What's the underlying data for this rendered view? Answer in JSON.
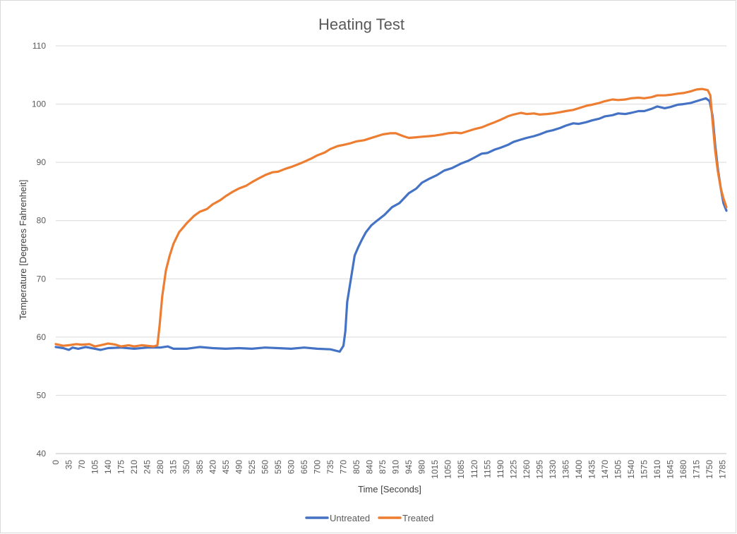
{
  "chart_data": {
    "type": "line",
    "title": "Heating Test",
    "xlabel": "Time [Seconds]",
    "ylabel": "Temperature [Degrees Fahrenheit]",
    "xlim": [
      0,
      1795
    ],
    "ylim": [
      40,
      110
    ],
    "y_ticks": [
      40,
      50,
      60,
      70,
      80,
      90,
      100,
      110
    ],
    "x_ticks": [
      0,
      35,
      70,
      105,
      140,
      175,
      210,
      245,
      280,
      315,
      350,
      385,
      420,
      455,
      490,
      525,
      560,
      595,
      630,
      665,
      700,
      735,
      770,
      805,
      840,
      875,
      910,
      945,
      980,
      1015,
      1050,
      1085,
      1120,
      1155,
      1190,
      1225,
      1260,
      1295,
      1330,
      1365,
      1400,
      1435,
      1470,
      1505,
      1540,
      1575,
      1610,
      1645,
      1680,
      1715,
      1750,
      1785
    ],
    "grid": "horizontal",
    "legend_position": "bottom",
    "series": [
      {
        "name": "Untreated",
        "color": "#4472c4",
        "points": [
          [
            0,
            58.3
          ],
          [
            20,
            58.1
          ],
          [
            35,
            57.8
          ],
          [
            45,
            58.2
          ],
          [
            60,
            58.0
          ],
          [
            80,
            58.3
          ],
          [
            105,
            58.0
          ],
          [
            120,
            57.8
          ],
          [
            140,
            58.1
          ],
          [
            175,
            58.2
          ],
          [
            210,
            58.0
          ],
          [
            245,
            58.2
          ],
          [
            280,
            58.2
          ],
          [
            300,
            58.4
          ],
          [
            315,
            58.0
          ],
          [
            350,
            58.0
          ],
          [
            385,
            58.3
          ],
          [
            420,
            58.1
          ],
          [
            455,
            58.0
          ],
          [
            490,
            58.1
          ],
          [
            525,
            58.0
          ],
          [
            560,
            58.2
          ],
          [
            595,
            58.1
          ],
          [
            630,
            58.0
          ],
          [
            665,
            58.2
          ],
          [
            700,
            58.0
          ],
          [
            735,
            57.9
          ],
          [
            760,
            57.5
          ],
          [
            770,
            58.5
          ],
          [
            775,
            61.0
          ],
          [
            780,
            66.0
          ],
          [
            790,
            70.0
          ],
          [
            800,
            74.0
          ],
          [
            810,
            75.5
          ],
          [
            820,
            76.8
          ],
          [
            830,
            78.0
          ],
          [
            845,
            79.2
          ],
          [
            860,
            80.0
          ],
          [
            880,
            81.0
          ],
          [
            900,
            82.3
          ],
          [
            920,
            83.0
          ],
          [
            945,
            84.7
          ],
          [
            965,
            85.5
          ],
          [
            980,
            86.5
          ],
          [
            1000,
            87.2
          ],
          [
            1020,
            87.8
          ],
          [
            1040,
            88.6
          ],
          [
            1060,
            89.0
          ],
          [
            1085,
            89.8
          ],
          [
            1105,
            90.3
          ],
          [
            1120,
            90.8
          ],
          [
            1140,
            91.5
          ],
          [
            1155,
            91.6
          ],
          [
            1175,
            92.2
          ],
          [
            1190,
            92.5
          ],
          [
            1210,
            93.0
          ],
          [
            1225,
            93.5
          ],
          [
            1245,
            93.9
          ],
          [
            1260,
            94.2
          ],
          [
            1280,
            94.5
          ],
          [
            1295,
            94.8
          ],
          [
            1315,
            95.3
          ],
          [
            1330,
            95.5
          ],
          [
            1350,
            95.9
          ],
          [
            1365,
            96.3
          ],
          [
            1385,
            96.7
          ],
          [
            1400,
            96.6
          ],
          [
            1420,
            96.9
          ],
          [
            1435,
            97.2
          ],
          [
            1455,
            97.5
          ],
          [
            1470,
            97.9
          ],
          [
            1490,
            98.1
          ],
          [
            1505,
            98.4
          ],
          [
            1525,
            98.3
          ],
          [
            1540,
            98.5
          ],
          [
            1560,
            98.8
          ],
          [
            1575,
            98.8
          ],
          [
            1595,
            99.2
          ],
          [
            1610,
            99.6
          ],
          [
            1630,
            99.3
          ],
          [
            1645,
            99.5
          ],
          [
            1665,
            99.9
          ],
          [
            1680,
            100.0
          ],
          [
            1700,
            100.2
          ],
          [
            1715,
            100.5
          ],
          [
            1730,
            100.8
          ],
          [
            1740,
            101.0
          ],
          [
            1750,
            100.5
          ],
          [
            1758,
            98.0
          ],
          [
            1765,
            93.0
          ],
          [
            1772,
            89.0
          ],
          [
            1780,
            85.5
          ],
          [
            1787,
            83.0
          ],
          [
            1795,
            81.7
          ]
        ]
      },
      {
        "name": "Treated",
        "color": "#ed7d31",
        "points": [
          [
            0,
            58.8
          ],
          [
            20,
            58.5
          ],
          [
            35,
            58.6
          ],
          [
            55,
            58.8
          ],
          [
            70,
            58.7
          ],
          [
            90,
            58.8
          ],
          [
            105,
            58.4
          ],
          [
            120,
            58.6
          ],
          [
            140,
            58.9
          ],
          [
            160,
            58.7
          ],
          [
            175,
            58.4
          ],
          [
            195,
            58.6
          ],
          [
            210,
            58.4
          ],
          [
            230,
            58.6
          ],
          [
            245,
            58.5
          ],
          [
            262,
            58.4
          ],
          [
            272,
            58.6
          ],
          [
            278,
            62.0
          ],
          [
            285,
            67.0
          ],
          [
            295,
            71.5
          ],
          [
            305,
            74.0
          ],
          [
            315,
            76.0
          ],
          [
            330,
            78.0
          ],
          [
            350,
            79.5
          ],
          [
            370,
            80.8
          ],
          [
            385,
            81.5
          ],
          [
            405,
            82.0
          ],
          [
            420,
            82.8
          ],
          [
            440,
            83.5
          ],
          [
            455,
            84.2
          ],
          [
            475,
            85.0
          ],
          [
            490,
            85.5
          ],
          [
            510,
            86.0
          ],
          [
            525,
            86.6
          ],
          [
            545,
            87.3
          ],
          [
            560,
            87.8
          ],
          [
            580,
            88.3
          ],
          [
            595,
            88.4
          ],
          [
            615,
            88.9
          ],
          [
            630,
            89.2
          ],
          [
            650,
            89.7
          ],
          [
            665,
            90.1
          ],
          [
            685,
            90.7
          ],
          [
            700,
            91.2
          ],
          [
            720,
            91.7
          ],
          [
            735,
            92.3
          ],
          [
            755,
            92.8
          ],
          [
            770,
            93.0
          ],
          [
            790,
            93.3
          ],
          [
            805,
            93.6
          ],
          [
            825,
            93.8
          ],
          [
            840,
            94.1
          ],
          [
            860,
            94.5
          ],
          [
            875,
            94.8
          ],
          [
            895,
            95.0
          ],
          [
            910,
            95.0
          ],
          [
            930,
            94.5
          ],
          [
            945,
            94.2
          ],
          [
            965,
            94.3
          ],
          [
            980,
            94.4
          ],
          [
            1000,
            94.5
          ],
          [
            1015,
            94.6
          ],
          [
            1035,
            94.8
          ],
          [
            1050,
            95.0
          ],
          [
            1070,
            95.1
          ],
          [
            1085,
            95.0
          ],
          [
            1105,
            95.4
          ],
          [
            1120,
            95.7
          ],
          [
            1140,
            96.0
          ],
          [
            1155,
            96.4
          ],
          [
            1175,
            96.9
          ],
          [
            1190,
            97.3
          ],
          [
            1210,
            97.9
          ],
          [
            1225,
            98.2
          ],
          [
            1245,
            98.5
          ],
          [
            1260,
            98.3
          ],
          [
            1280,
            98.4
          ],
          [
            1295,
            98.2
          ],
          [
            1315,
            98.3
          ],
          [
            1330,
            98.4
          ],
          [
            1350,
            98.6
          ],
          [
            1365,
            98.8
          ],
          [
            1385,
            99.0
          ],
          [
            1400,
            99.3
          ],
          [
            1420,
            99.7
          ],
          [
            1435,
            99.9
          ],
          [
            1455,
            100.2
          ],
          [
            1470,
            100.5
          ],
          [
            1490,
            100.8
          ],
          [
            1505,
            100.7
          ],
          [
            1525,
            100.8
          ],
          [
            1540,
            101.0
          ],
          [
            1560,
            101.1
          ],
          [
            1575,
            101.0
          ],
          [
            1595,
            101.2
          ],
          [
            1610,
            101.5
          ],
          [
            1630,
            101.5
          ],
          [
            1645,
            101.6
          ],
          [
            1665,
            101.8
          ],
          [
            1680,
            101.9
          ],
          [
            1700,
            102.2
          ],
          [
            1715,
            102.5
          ],
          [
            1730,
            102.6
          ],
          [
            1745,
            102.4
          ],
          [
            1752,
            101.5
          ],
          [
            1758,
            97.0
          ],
          [
            1765,
            92.0
          ],
          [
            1772,
            88.5
          ],
          [
            1780,
            85.5
          ],
          [
            1787,
            83.8
          ],
          [
            1795,
            82.3
          ]
        ]
      }
    ]
  }
}
